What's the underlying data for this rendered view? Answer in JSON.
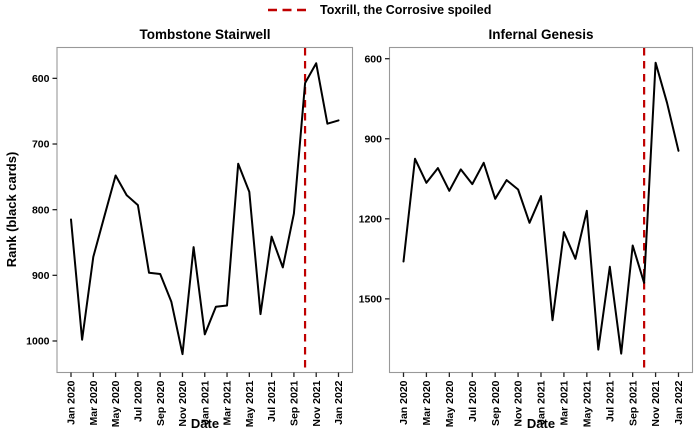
{
  "legend": {
    "label": "Toxrill, the Corrosive spoiled",
    "color": "#C00000",
    "line_style": "dashed"
  },
  "axes": {
    "y_label": "Rank (black cards)",
    "x_label": "Date"
  },
  "colors": {
    "series": "#000000",
    "vline": "#C00000",
    "panel_border": "#999999",
    "tick": "#222222",
    "text": "#000000"
  },
  "chart_data": [
    {
      "type": "line",
      "title": "Tombstone Stairwell",
      "xlabel": "Date",
      "ylabel": "Rank (black cards)",
      "x": [
        "Jan 2020",
        "Feb 2020",
        "Mar 2020",
        "Apr 2020",
        "May 2020",
        "Jun 2020",
        "Jul 2020",
        "Aug 2020",
        "Sep 2020",
        "Oct 2020",
        "Nov 2020",
        "Dec 2020",
        "Jan 2021",
        "Feb 2021",
        "Mar 2021",
        "Apr 2021",
        "May 2021",
        "Jun 2021",
        "Jul 2021",
        "Aug 2021",
        "Sep 2021",
        "Oct 2021",
        "Nov 2021",
        "Dec 2021",
        "Jan 2022"
      ],
      "values": [
        815,
        998,
        872,
        810,
        748,
        778,
        793,
        896,
        898,
        940,
        1020,
        857,
        990,
        948,
        946,
        730,
        773,
        959,
        841,
        888,
        806,
        607,
        577,
        669,
        664
      ],
      "yticks": [
        600,
        700,
        800,
        900,
        1000
      ],
      "ylim": [
        553,
        1048
      ],
      "y_axis_inverted_rank": true,
      "grid": false,
      "xtick_labels": [
        "Jan 2020",
        "Mar 2020",
        "May 2020",
        "Jul 2020",
        "Sep 2020",
        "Nov 2020",
        "Jan 2021",
        "Mar 2021",
        "May 2021",
        "Jul 2021",
        "Sep 2021",
        "Nov 2021",
        "Jan 2022"
      ],
      "vline_x": "Oct 2021"
    },
    {
      "type": "line",
      "title": "Infernal Genesis",
      "xlabel": "Date",
      "ylabel": "Rank (black cards)",
      "x": [
        "Jan 2020",
        "Feb 2020",
        "Mar 2020",
        "Apr 2020",
        "May 2020",
        "Jun 2020",
        "Jul 2020",
        "Aug 2020",
        "Sep 2020",
        "Oct 2020",
        "Nov 2020",
        "Dec 2020",
        "Jan 2021",
        "Feb 2021",
        "Mar 2021",
        "Apr 2021",
        "May 2021",
        "Jun 2021",
        "Jul 2021",
        "Aug 2021",
        "Sep 2021",
        "Oct 2021",
        "Nov 2021",
        "Dec 2021",
        "Jan 2022"
      ],
      "values": [
        1360,
        975,
        1065,
        1010,
        1095,
        1015,
        1070,
        990,
        1125,
        1055,
        1090,
        1215,
        1115,
        1580,
        1250,
        1350,
        1170,
        1690,
        1380,
        1705,
        1300,
        1440,
        615,
        765,
        945
      ],
      "yticks": [
        600,
        900,
        1200,
        1500
      ],
      "ylim": [
        558,
        1776
      ],
      "y_axis_inverted_rank": true,
      "grid": false,
      "xtick_labels": [
        "Jan 2020",
        "Mar 2020",
        "May 2020",
        "Jul 2020",
        "Sep 2020",
        "Nov 2020",
        "Jan 2021",
        "Mar 2021",
        "May 2021",
        "Jul 2021",
        "Sep 2021",
        "Nov 2021",
        "Jan 2022"
      ],
      "vline_x": "Oct 2021"
    }
  ]
}
